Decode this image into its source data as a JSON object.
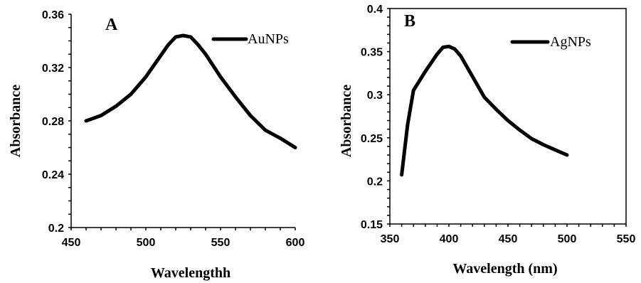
{
  "chart_data": [
    {
      "type": "line",
      "panel_label": "A",
      "xlabel": "Wavelengthh",
      "ylabel": "Absorbance",
      "xlim": [
        450,
        600
      ],
      "ylim": [
        0.2,
        0.36
      ],
      "x_ticks": [
        "450",
        "500",
        "550",
        "600"
      ],
      "y_ticks": [
        "0.2",
        "0.24",
        "0.28",
        "0.32",
        "0.36"
      ],
      "grid": false,
      "legend_position": "top-right",
      "series": [
        {
          "name": "AuNPs",
          "x": [
            460,
            470,
            480,
            490,
            500,
            510,
            515,
            520,
            525,
            530,
            535,
            540,
            550,
            560,
            570,
            580,
            590,
            600
          ],
          "y": [
            0.28,
            0.284,
            0.291,
            0.3,
            0.313,
            0.329,
            0.337,
            0.343,
            0.344,
            0.343,
            0.337,
            0.33,
            0.313,
            0.298,
            0.284,
            0.273,
            0.267,
            0.26
          ]
        }
      ]
    },
    {
      "type": "line",
      "panel_label": "B",
      "xlabel": "Wavelength (nm)",
      "ylabel": "Absorbance",
      "xlim": [
        350,
        550
      ],
      "ylim": [
        0.15,
        0.4
      ],
      "x_ticks": [
        "350",
        "400",
        "450",
        "500",
        "550"
      ],
      "y_ticks": [
        "0.15",
        "0.2",
        "0.25",
        "0.3",
        "0.35",
        "0.4"
      ],
      "grid": false,
      "legend_position": "top-right",
      "series": [
        {
          "name": "AgNPs",
          "x": [
            360,
            365,
            370,
            380,
            390,
            395,
            400,
            405,
            410,
            420,
            430,
            440,
            450,
            460,
            470,
            480,
            490,
            500
          ],
          "y": [
            0.207,
            0.265,
            0.305,
            0.327,
            0.347,
            0.355,
            0.356,
            0.353,
            0.345,
            0.321,
            0.297,
            0.283,
            0.27,
            0.259,
            0.249,
            0.242,
            0.236,
            0.23
          ]
        }
      ]
    }
  ]
}
